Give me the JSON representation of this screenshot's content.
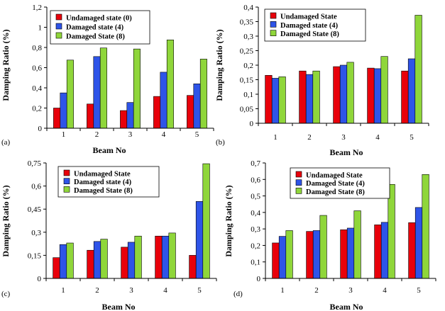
{
  "chart_data": [
    {
      "type": "bar",
      "panel_label": "(a)",
      "categories": [
        "1",
        "2",
        "3",
        "4",
        "5"
      ],
      "series": [
        {
          "name": "Undamaged state (0)",
          "values": [
            0.2,
            0.24,
            0.175,
            0.315,
            0.325
          ]
        },
        {
          "name": "Damaged state (4)",
          "values": [
            0.35,
            0.71,
            0.255,
            0.555,
            0.44
          ]
        },
        {
          "name": "Damaged State (8)",
          "values": [
            0.675,
            0.795,
            0.785,
            0.875,
            0.685
          ]
        }
      ],
      "yticks": [
        "0",
        "0,2",
        "0,4",
        "0,6",
        "0,8",
        "1",
        "1,2"
      ],
      "ylim": [
        0,
        1.2
      ],
      "xlabel": "Beam No",
      "ylabel": "Damping Ratio (%)",
      "legend_position": "top-left",
      "colors": [
        "#e8000b",
        "#2e54e8",
        "#8fd63a"
      ]
    },
    {
      "type": "bar",
      "panel_label": "(b)",
      "categories": [
        "1",
        "2",
        "3",
        "4",
        "5"
      ],
      "series": [
        {
          "name": "Undamaged State",
          "values": [
            0.165,
            0.18,
            0.195,
            0.19,
            0.18
          ]
        },
        {
          "name": "Damaged state (4)",
          "values": [
            0.155,
            0.168,
            0.2,
            0.188,
            0.222
          ]
        },
        {
          "name": "Damaged State (8)",
          "values": [
            0.16,
            0.18,
            0.21,
            0.23,
            0.372
          ]
        }
      ],
      "yticks": [
        "0",
        "0,05",
        "0,1",
        "0,15",
        "0,2",
        "0,25",
        "0,3",
        "0,35",
        "0,4"
      ],
      "ylim": [
        0,
        0.4
      ],
      "xlabel": "Beam No",
      "ylabel": "Damping Ratio (%)",
      "legend_position": "top-left",
      "colors": [
        "#e8000b",
        "#2e54e8",
        "#8fd63a"
      ]
    },
    {
      "type": "bar",
      "panel_label": "(c)",
      "categories": [
        "1",
        "2",
        "3",
        "4",
        "5"
      ],
      "series": [
        {
          "name": "Undamaged State",
          "values": [
            0.135,
            0.183,
            0.203,
            0.275,
            0.15
          ]
        },
        {
          "name": "Damaged state (4)",
          "values": [
            0.22,
            0.24,
            0.235,
            0.275,
            0.5
          ]
        },
        {
          "name": "Damaged State (8)",
          "values": [
            0.23,
            0.255,
            0.275,
            0.295,
            0.745
          ]
        }
      ],
      "yticks": [
        "0",
        "0,15",
        "0,3",
        "0,45",
        "0,6",
        "0,75"
      ],
      "ylim": [
        0,
        0.75
      ],
      "xlabel": "Beam No",
      "ylabel": "Damping Ratio (%)",
      "legend_position": "top-left",
      "colors": [
        "#e8000b",
        "#2e54e8",
        "#8fd63a"
      ]
    },
    {
      "type": "bar",
      "panel_label": "(d)",
      "categories": [
        "1",
        "2",
        "3",
        "4",
        "5"
      ],
      "series": [
        {
          "name": "Undamaged State",
          "values": [
            0.215,
            0.285,
            0.295,
            0.325,
            0.338
          ]
        },
        {
          "name": "Damaged State (4)",
          "values": [
            0.255,
            0.29,
            0.305,
            0.34,
            0.43
          ]
        },
        {
          "name": "Damaged State (8)",
          "values": [
            0.29,
            0.382,
            0.41,
            0.57,
            0.63
          ]
        }
      ],
      "yticks": [
        "0",
        "0,1",
        "0,2",
        "0,3",
        "0,4",
        "0,5",
        "0,6",
        "0,7"
      ],
      "ylim": [
        0,
        0.7
      ],
      "xlabel": "Beam No",
      "ylabel": "Damping Ratio (%)",
      "legend_position": "top-left",
      "colors": [
        "#e8000b",
        "#2e54e8",
        "#8fd63a"
      ]
    }
  ]
}
